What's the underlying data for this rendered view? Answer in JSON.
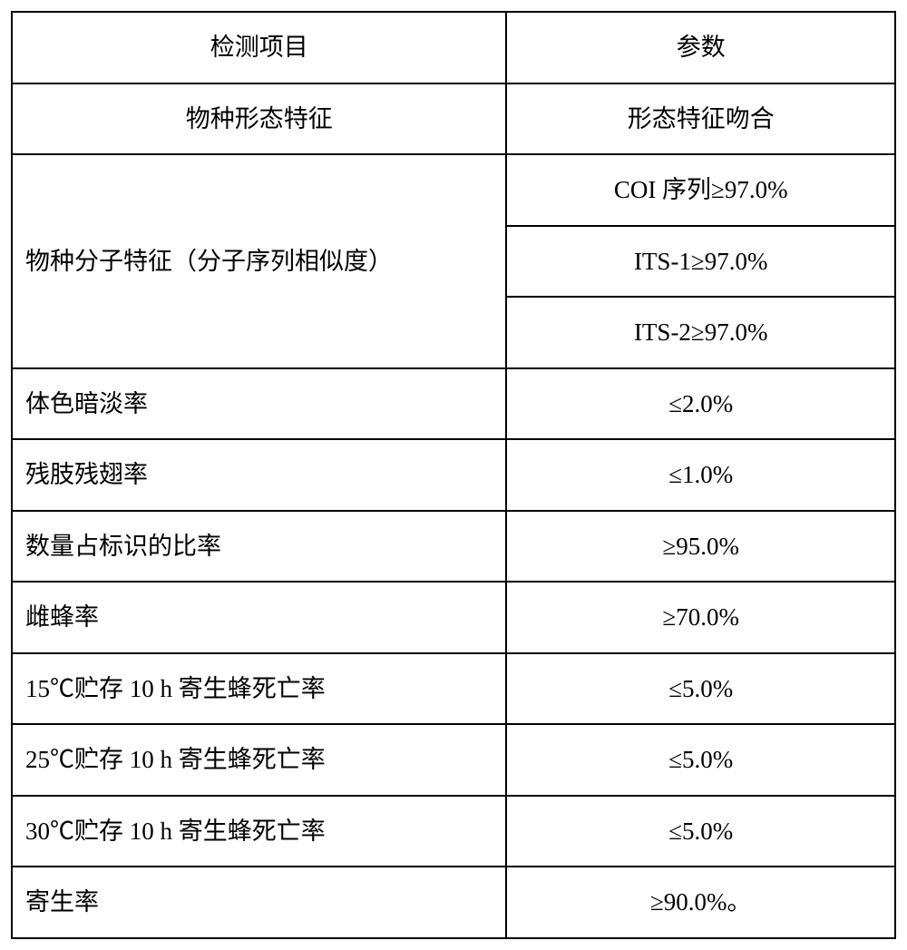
{
  "table": {
    "columns": [
      "检测项目",
      "参数"
    ],
    "header": {
      "col1": "检测项目",
      "col2": "参数"
    },
    "rows": [
      {
        "label": "物种形态特征",
        "label_align": "center",
        "value": "形态特征吻合",
        "value_align": "center"
      },
      {
        "label": "物种分子特征（分子序列相似度）",
        "label_align": "left",
        "rowspan": 3,
        "values": [
          {
            "text": "COI 序列≥97.0%",
            "align": "center"
          },
          {
            "text": "ITS-1≥97.0%",
            "align": "center"
          },
          {
            "text": "ITS-2≥97.0%",
            "align": "center"
          }
        ]
      },
      {
        "label": "体色暗淡率",
        "label_align": "left",
        "value": "≤2.0%",
        "value_align": "center"
      },
      {
        "label": "残肢残翅率",
        "label_align": "left",
        "value": "≤1.0%",
        "value_align": "center"
      },
      {
        "label": "数量占标识的比率",
        "label_align": "left",
        "value": "≥95.0%",
        "value_align": "center"
      },
      {
        "label": "雌蜂率",
        "label_align": "left",
        "value": "≥70.0%",
        "value_align": "center"
      },
      {
        "label": "15℃贮存 10 h 寄生蜂死亡率",
        "label_align": "left",
        "value": "≤5.0%",
        "value_align": "center"
      },
      {
        "label": "25℃贮存 10 h 寄生蜂死亡率",
        "label_align": "left",
        "value": "≤5.0%",
        "value_align": "center"
      },
      {
        "label": "30℃贮存 10 h 寄生蜂死亡率",
        "label_align": "left",
        "value": "≤5.0%",
        "value_align": "center"
      },
      {
        "label": "寄生率",
        "label_align": "left",
        "value": "≥90.0%。",
        "value_align": "center"
      }
    ],
    "border_color": "#000000",
    "background_color": "#ffffff",
    "text_color": "#000000",
    "font_size": 27,
    "col_widths": [
      "56%",
      "44%"
    ]
  }
}
